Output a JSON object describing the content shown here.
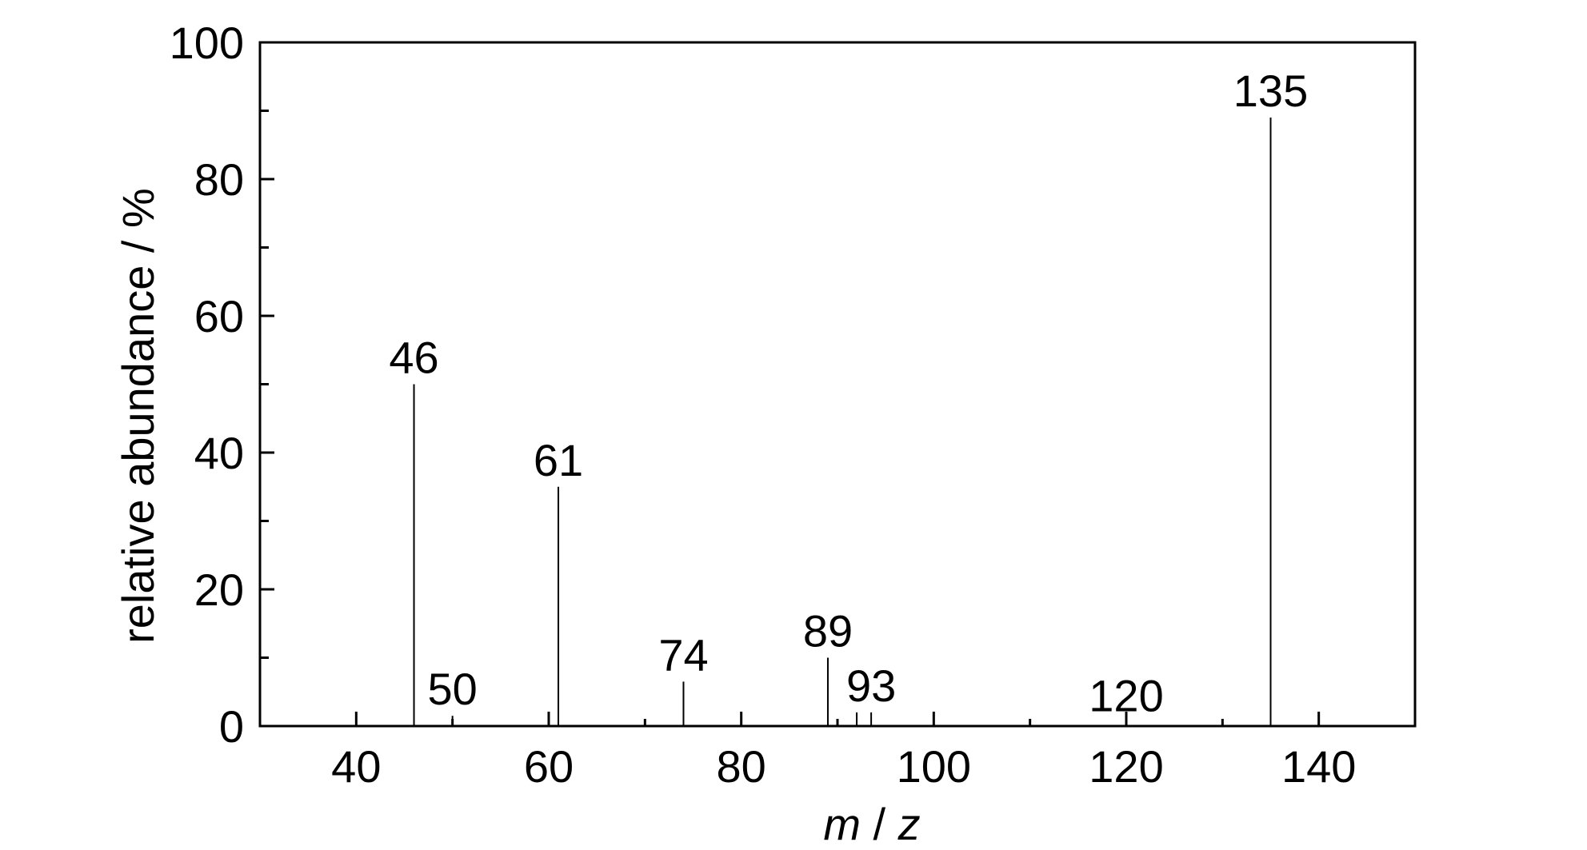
{
  "chart_data": {
    "type": "bar",
    "title": "",
    "xlabel": {
      "m": "m",
      "sep": " / ",
      "z": "z"
    },
    "ylabel": "relative abundance / %",
    "xlim": [
      30,
      150
    ],
    "ylim": [
      0,
      100
    ],
    "x_ticks": [
      40,
      60,
      80,
      100,
      120,
      140
    ],
    "x_tick_labels": [
      "40",
      "60",
      "80",
      "100",
      "120",
      "140"
    ],
    "x_minor_ticks": [
      50,
      70,
      90,
      110,
      130
    ],
    "y_ticks": [
      0,
      20,
      40,
      60,
      80,
      100
    ],
    "y_tick_labels": [
      "0",
      "20",
      "40",
      "60",
      "80",
      "100"
    ],
    "y_minor_ticks": [
      10,
      30,
      50,
      70,
      90
    ],
    "grid": false,
    "series": [
      {
        "peaks": [
          {
            "x": 46,
            "y": 50,
            "label": "46"
          },
          {
            "x": 50,
            "y": 1.5,
            "label": "50"
          },
          {
            "x": 61,
            "y": 35,
            "label": "61"
          },
          {
            "x": 74,
            "y": 6.5,
            "label": "74"
          },
          {
            "x": 89,
            "y": 10,
            "label": "89"
          },
          {
            "x": 92,
            "y": 2,
            "label": ""
          },
          {
            "x": 93.5,
            "y": 2,
            "label": "93"
          },
          {
            "x": 120,
            "y": 0.5,
            "label": "120"
          },
          {
            "x": 135,
            "y": 89,
            "label": "135"
          }
        ]
      }
    ]
  }
}
